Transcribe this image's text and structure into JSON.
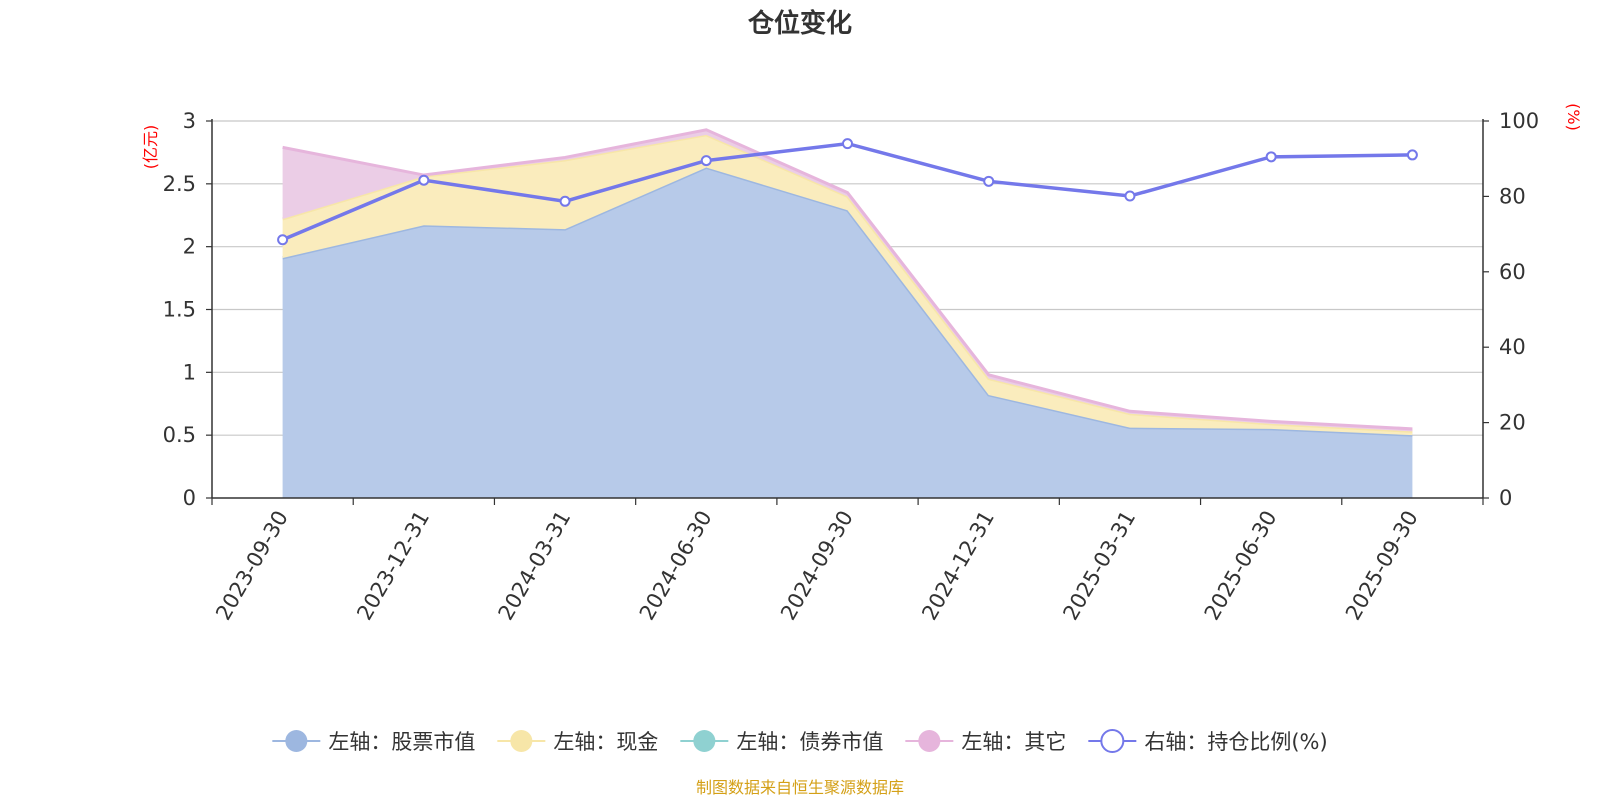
{
  "chart_data": {
    "type": "area",
    "title": "仓位变化",
    "categories": [
      "2023-09-30",
      "2023-12-31",
      "2024-03-31",
      "2024-06-30",
      "2024-09-30",
      "2024-12-31",
      "2025-03-31",
      "2025-06-30",
      "2025-09-30"
    ],
    "left_axis": {
      "unit": "(亿元)",
      "ylim": [
        0,
        3
      ],
      "ticks": [
        "0",
        "0.5",
        "1",
        "1.5",
        "2",
        "2.5",
        "3"
      ]
    },
    "right_axis": {
      "unit": "(%)",
      "ylim": [
        0,
        100
      ],
      "ticks": [
        "0",
        "20",
        "40",
        "60",
        "80",
        "100"
      ]
    },
    "series": [
      {
        "name": "左轴：股票市值",
        "axis": "left",
        "stack": true,
        "color": "#9db7e0",
        "fill": "#b7cae9",
        "values": [
          1.91,
          2.17,
          2.14,
          2.63,
          2.29,
          0.82,
          0.56,
          0.55,
          0.5
        ]
      },
      {
        "name": "左轴：现金",
        "axis": "left",
        "stack": true,
        "color": "#f7e6a8",
        "fill": "#faecbd",
        "values": [
          0.31,
          0.39,
          0.55,
          0.26,
          0.11,
          0.13,
          0.11,
          0.04,
          0.03
        ]
      },
      {
        "name": "左轴：债券市值",
        "axis": "left",
        "stack": true,
        "color": "#8fd1d1",
        "fill": "#b5e1e1",
        "values": [
          0,
          0,
          0,
          0,
          0,
          0,
          0,
          0,
          0
        ]
      },
      {
        "name": "左轴：其它",
        "axis": "left",
        "stack": true,
        "color": "#e6b5dc",
        "fill": "#ebcde6",
        "values": [
          0.57,
          0.01,
          0.02,
          0.04,
          0.03,
          0.03,
          0.02,
          0.02,
          0.02
        ]
      },
      {
        "name": "右轴：持仓比例(%)",
        "axis": "right",
        "type": "line",
        "color": "#7478ea",
        "values": [
          68.5,
          84.3,
          78.7,
          89.5,
          94.0,
          84.0,
          80.1,
          90.5,
          91.0
        ]
      }
    ],
    "legend_position": "bottom",
    "source_note": "制图数据来自恒生聚源数据库"
  }
}
